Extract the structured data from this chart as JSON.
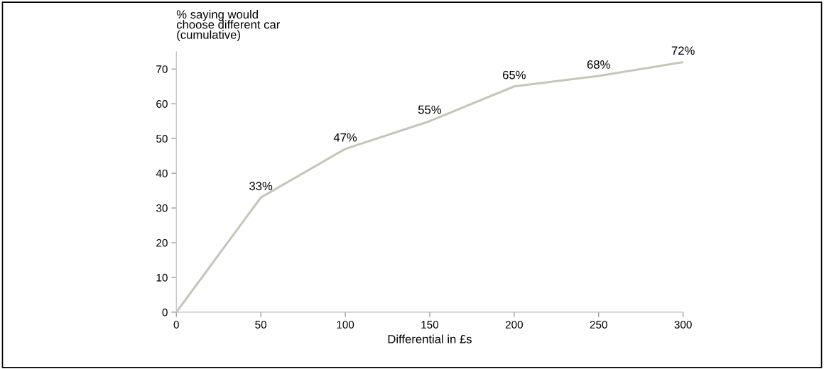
{
  "chart_data": {
    "type": "line",
    "ylabel": "% saying would\nchoose different car\n(cumulative)",
    "xlabel": "Differential in £s",
    "x": [
      0,
      50,
      100,
      150,
      200,
      250,
      300
    ],
    "series": [
      {
        "color": "#c8c5b8",
        "values": [
          0,
          33,
          47,
          55,
          65,
          68,
          72
        ],
        "value_labels": [
          null,
          "33%",
          "47%",
          "55%",
          "65%",
          "68%",
          "72%"
        ]
      }
    ],
    "xlim": [
      0,
      300
    ],
    "xticks": [
      0,
      50,
      100,
      150,
      200,
      250,
      300
    ],
    "ylim": [
      0,
      75
    ],
    "yticks": [
      0,
      10,
      20,
      30,
      40,
      50,
      60,
      70
    ],
    "grid": false,
    "legend": false,
    "marker": "none",
    "line_style": "solid"
  }
}
